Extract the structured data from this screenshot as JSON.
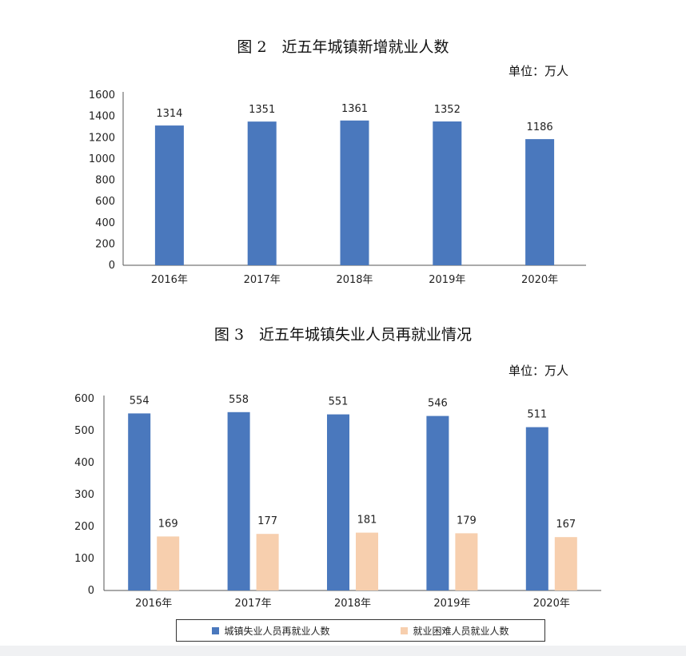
{
  "chart1": {
    "title": "图 2　近五年城镇新增就业人数",
    "unit": "单位：万人",
    "chart_data": {
      "type": "bar",
      "categories": [
        "2016年",
        "2017年",
        "2018年",
        "2019年",
        "2020年"
      ],
      "values": [
        1314,
        1351,
        1361,
        1352,
        1186
      ],
      "ylim": [
        0,
        1600
      ],
      "yticks": [
        0,
        200,
        400,
        600,
        800,
        1000,
        1200,
        1400,
        1600
      ],
      "color": "#4a78bd"
    }
  },
  "chart2": {
    "title": "图 3　近五年城镇失业人员再就业情况",
    "unit": "单位：万人",
    "chart_data": {
      "type": "bar",
      "categories": [
        "2016年",
        "2017年",
        "2018年",
        "2019年",
        "2020年"
      ],
      "series": [
        {
          "name": "城镇失业人员再就业人数",
          "values": [
            554,
            558,
            551,
            546,
            511
          ],
          "color": "#4a78bd"
        },
        {
          "name": "就业困难人员就业人数",
          "values": [
            169,
            177,
            181,
            179,
            167
          ],
          "color": "#f7cfae"
        }
      ],
      "ylim": [
        0,
        600
      ],
      "yticks": [
        0,
        100,
        200,
        300,
        400,
        500,
        600
      ],
      "legend": "bottom"
    }
  }
}
